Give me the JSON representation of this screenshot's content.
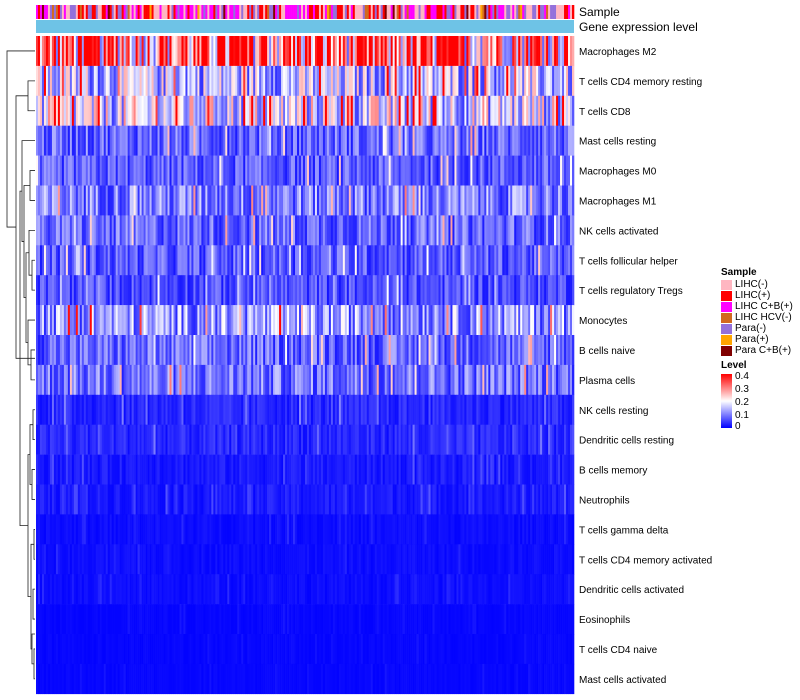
{
  "chart_data": {
    "type": "heatmap",
    "title": "",
    "annotation_labels": [
      "Sample",
      "Gene expression level"
    ],
    "rows": [
      {
        "label": "Macrophages M2",
        "mean": 0.3
      },
      {
        "label": "T cells CD4 memory resting",
        "mean": 0.15
      },
      {
        "label": "T cells CD8",
        "mean": 0.17
      },
      {
        "label": "Mast cells resting",
        "mean": 0.08
      },
      {
        "label": "Macrophages M0",
        "mean": 0.07
      },
      {
        "label": "Macrophages M1",
        "mean": 0.1
      },
      {
        "label": "NK cells activated",
        "mean": 0.08
      },
      {
        "label": "T cells follicular helper",
        "mean": 0.07
      },
      {
        "label": "T cells regulatory  Tregs",
        "mean": 0.06
      },
      {
        "label": "Monocytes",
        "mean": 0.12
      },
      {
        "label": "B cells naive",
        "mean": 0.08
      },
      {
        "label": "Plasma cells",
        "mean": 0.09
      },
      {
        "label": "NK cells resting",
        "mean": 0.03
      },
      {
        "label": "Dendritic cells resting",
        "mean": 0.03
      },
      {
        "label": "B cells memory",
        "mean": 0.02
      },
      {
        "label": "Neutrophils",
        "mean": 0.02
      },
      {
        "label": "T cells gamma delta",
        "mean": 0.01
      },
      {
        "label": "T cells CD4 memory activated",
        "mean": 0.01
      },
      {
        "label": "Dendritic cells activated",
        "mean": 0.01
      },
      {
        "label": "Eosinophils",
        "mean": 0.005
      },
      {
        "label": "T cells CD4 naive",
        "mean": 0.005
      },
      {
        "label": "Mast cells activated",
        "mean": 0.005
      }
    ],
    "color_scale": {
      "min": 0,
      "max": 0.4,
      "low_color": "#0000ff",
      "mid_color": "#ffffff",
      "high_color": "#ff0000",
      "ticks": [
        0,
        0.1,
        0.2,
        0.3,
        0.4
      ]
    },
    "sample_legend": {
      "title": "Sample",
      "items": [
        {
          "label": "LIHC(-)",
          "color": "#ffb6c1"
        },
        {
          "label": "LIHC(+)",
          "color": "#ff0000"
        },
        {
          "label": "LIHC C+B(+)",
          "color": "#ff00ff"
        },
        {
          "label": "LIHC HCV(-)",
          "color": "#d2691e"
        },
        {
          "label": "Para(-)",
          "color": "#9370db"
        },
        {
          "label": "Para(+)",
          "color": "#ffa500"
        },
        {
          "label": "Para C+B(+)",
          "color": "#800000"
        }
      ]
    },
    "level_legend": {
      "title": "Level",
      "tick_labels": [
        "0.4",
        "0.3",
        "0.2",
        "0.1",
        "0"
      ]
    },
    "expression_bar_color": "#6ec3e6",
    "legend_position": "right"
  }
}
